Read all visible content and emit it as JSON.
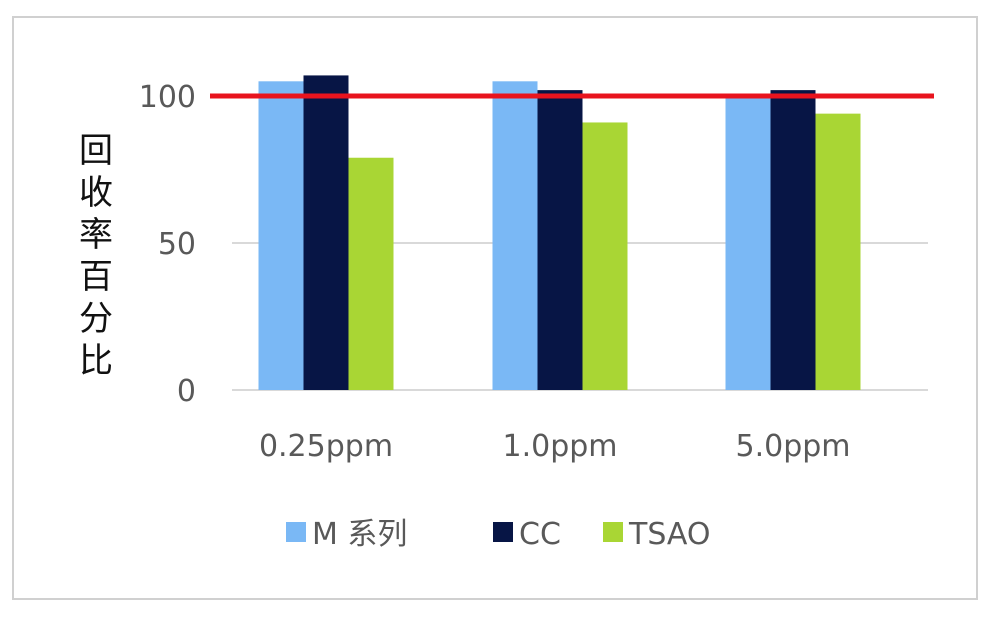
{
  "chart_data": {
    "type": "bar",
    "categories": [
      "0.25ppm",
      "1.0ppm",
      "5.0ppm"
    ],
    "series": [
      {
        "name": "M 系列",
        "color": "#7ab8f5",
        "values": [
          105,
          105,
          100
        ]
      },
      {
        "name": "CC",
        "color": "#071545",
        "values": [
          107,
          102,
          102
        ]
      },
      {
        "name": "TSAO",
        "color": "#a9d634",
        "values": [
          79,
          91,
          94
        ]
      }
    ],
    "ylabel": "回收率百分比",
    "yticks": [
      0,
      50,
      100
    ],
    "ylim": [
      0,
      110
    ],
    "reference_line": {
      "value": 100,
      "color": "#e8141e"
    },
    "grid": true,
    "legend": "bottom"
  }
}
